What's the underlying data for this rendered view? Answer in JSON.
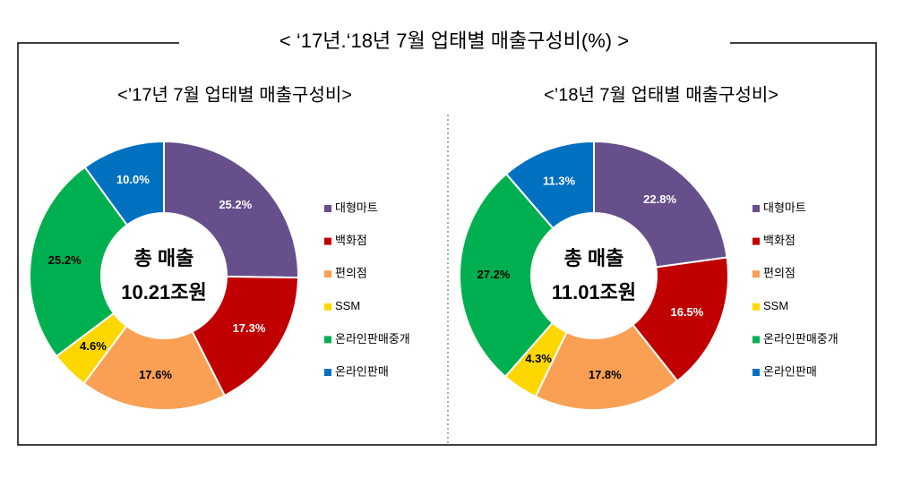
{
  "title": "< ‘17년.‘18년 7월 업태별 매출구성비(%) >",
  "chart_data": [
    {
      "type": "donut",
      "title": "<’17년 7월 업태별 매출구성비>",
      "center_text": [
        "총 매출",
        "10.21조원"
      ],
      "categories": [
        "대형마트",
        "백화점",
        "편의점",
        "SSM",
        "온라인판매중개",
        "온라인판매"
      ],
      "values": [
        25.2,
        17.3,
        17.6,
        4.6,
        25.2,
        10.0
      ],
      "value_labels": [
        "25.2%",
        "17.3%",
        "17.6%",
        "4.6%",
        "25.2%",
        "10.0%"
      ],
      "colors": [
        "#664F8A",
        "#C00000",
        "#F9A055",
        "#FFD700",
        "#00B050",
        "#0070C0"
      ],
      "label_colors": [
        "#ffffff",
        "#ffffff",
        "#000000",
        "#000000",
        "#000000",
        "#ffffff"
      ]
    },
    {
      "type": "donut",
      "title": "<’18년 7월 업태별 매출구성비>",
      "center_text": [
        "총 매출",
        "11.01조원"
      ],
      "categories": [
        "대형마트",
        "백화점",
        "편의점",
        "SSM",
        "온라인판매중개",
        "온라인판매"
      ],
      "values": [
        22.8,
        16.5,
        17.8,
        4.3,
        27.2,
        11.3
      ],
      "value_labels": [
        "22.8%",
        "16.5%",
        "17.8%",
        "4.3%",
        "27.2%",
        "11.3%"
      ],
      "colors": [
        "#664F8A",
        "#C00000",
        "#F9A055",
        "#FFD700",
        "#00B050",
        "#0070C0"
      ],
      "label_colors": [
        "#ffffff",
        "#ffffff",
        "#000000",
        "#000000",
        "#000000",
        "#ffffff"
      ]
    }
  ]
}
